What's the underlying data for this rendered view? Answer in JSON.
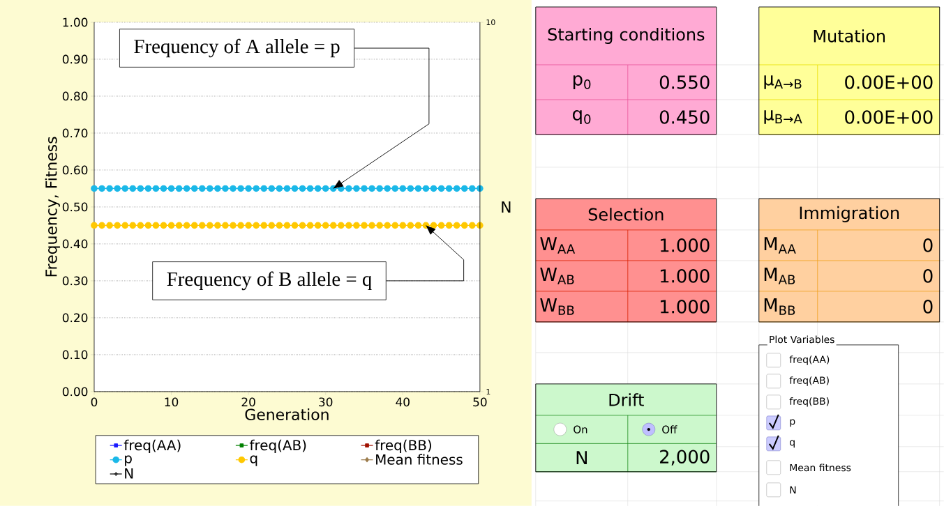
{
  "chart_data": [
    {
      "type": "line",
      "xlabel": "Generation",
      "ylabel": "Frequency, Fitness",
      "y2label": "N",
      "x": [
        0,
        1,
        2,
        3,
        4,
        5,
        6,
        7,
        8,
        9,
        10,
        11,
        12,
        13,
        14,
        15,
        16,
        17,
        18,
        19,
        20,
        21,
        22,
        23,
        24,
        25,
        26,
        27,
        28,
        29,
        30,
        31,
        32,
        33,
        34,
        35,
        36,
        37,
        38,
        39,
        40,
        41,
        42,
        43,
        44,
        45,
        46,
        47,
        48,
        49,
        50
      ],
      "series": [
        {
          "name": "freq(AA)",
          "color": "#1a1aff",
          "marker": "square",
          "values": [
            null,
            null,
            null,
            null,
            null,
            null,
            null,
            null,
            null,
            null,
            null,
            null,
            null,
            null,
            null,
            null,
            null,
            null,
            null,
            null,
            null,
            null,
            null,
            null,
            null,
            null,
            null,
            null,
            null,
            null,
            null,
            null,
            null,
            null,
            null,
            null,
            null,
            null,
            null,
            null,
            null,
            null,
            null,
            null,
            null,
            null,
            null,
            null,
            null,
            null,
            null
          ]
        },
        {
          "name": "freq(AB)",
          "color": "#008000",
          "marker": "square",
          "values": [
            null,
            null,
            null,
            null,
            null,
            null,
            null,
            null,
            null,
            null,
            null,
            null,
            null,
            null,
            null,
            null,
            null,
            null,
            null,
            null,
            null,
            null,
            null,
            null,
            null,
            null,
            null,
            null,
            null,
            null,
            null,
            null,
            null,
            null,
            null,
            null,
            null,
            null,
            null,
            null,
            null,
            null,
            null,
            null,
            null,
            null,
            null,
            null,
            null,
            null,
            null
          ]
        },
        {
          "name": "freq(BB)",
          "color": "#a01000",
          "marker": "square",
          "values": [
            null,
            null,
            null,
            null,
            null,
            null,
            null,
            null,
            null,
            null,
            null,
            null,
            null,
            null,
            null,
            null,
            null,
            null,
            null,
            null,
            null,
            null,
            null,
            null,
            null,
            null,
            null,
            null,
            null,
            null,
            null,
            null,
            null,
            null,
            null,
            null,
            null,
            null,
            null,
            null,
            null,
            null,
            null,
            null,
            null,
            null,
            null,
            null,
            null,
            null,
            null
          ]
        },
        {
          "name": "p",
          "color": "#1ab8e8",
          "marker": "circle",
          "values": [
            0.55,
            0.55,
            0.55,
            0.55,
            0.55,
            0.55,
            0.55,
            0.55,
            0.55,
            0.55,
            0.55,
            0.55,
            0.55,
            0.55,
            0.55,
            0.55,
            0.55,
            0.55,
            0.55,
            0.55,
            0.55,
            0.55,
            0.55,
            0.55,
            0.55,
            0.55,
            0.55,
            0.55,
            0.55,
            0.55,
            0.55,
            0.55,
            0.55,
            0.55,
            0.55,
            0.55,
            0.55,
            0.55,
            0.55,
            0.55,
            0.55,
            0.55,
            0.55,
            0.55,
            0.55,
            0.55,
            0.55,
            0.55,
            0.55,
            0.55,
            0.55
          ]
        },
        {
          "name": "q",
          "color": "#ffc800",
          "marker": "circle",
          "values": [
            0.45,
            0.45,
            0.45,
            0.45,
            0.45,
            0.45,
            0.45,
            0.45,
            0.45,
            0.45,
            0.45,
            0.45,
            0.45,
            0.45,
            0.45,
            0.45,
            0.45,
            0.45,
            0.45,
            0.45,
            0.45,
            0.45,
            0.45,
            0.45,
            0.45,
            0.45,
            0.45,
            0.45,
            0.45,
            0.45,
            0.45,
            0.45,
            0.45,
            0.45,
            0.45,
            0.45,
            0.45,
            0.45,
            0.45,
            0.45,
            0.45,
            0.45,
            0.45,
            0.45,
            0.45,
            0.45,
            0.45,
            0.45,
            0.45,
            0.45,
            0.45
          ]
        },
        {
          "name": "Mean fitness",
          "color": "#9b7b4b",
          "marker": "diamond",
          "values": [
            null,
            null,
            null,
            null,
            null,
            null,
            null,
            null,
            null,
            null,
            null,
            null,
            null,
            null,
            null,
            null,
            null,
            null,
            null,
            null,
            null,
            null,
            null,
            null,
            null,
            null,
            null,
            null,
            null,
            null,
            null,
            null,
            null,
            null,
            null,
            null,
            null,
            null,
            null,
            null,
            null,
            null,
            null,
            null,
            null,
            null,
            null,
            null,
            null,
            null,
            null
          ]
        },
        {
          "name": "N",
          "color": "#000000",
          "marker": "cross",
          "values": [
            null,
            null,
            null,
            null,
            null,
            null,
            null,
            null,
            null,
            null,
            null,
            null,
            null,
            null,
            null,
            null,
            null,
            null,
            null,
            null,
            null,
            null,
            null,
            null,
            null,
            null,
            null,
            null,
            null,
            null,
            null,
            null,
            null,
            null,
            null,
            null,
            null,
            null,
            null,
            null,
            null,
            null,
            null,
            null,
            null,
            null,
            null,
            null,
            null,
            null,
            null
          ]
        }
      ],
      "xlim": [
        0,
        50
      ],
      "xticks": [
        0,
        10,
        20,
        30,
        40,
        50
      ],
      "ylim": [
        0,
        1
      ],
      "yticks": [
        {
          "value": 0,
          "label": "0.00"
        },
        {
          "value": 0.1,
          "label": "0.10"
        },
        {
          "value": 0.2,
          "label": "0.20"
        },
        {
          "value": 0.3,
          "label": "0.30"
        },
        {
          "value": 0.4,
          "label": "0.40"
        },
        {
          "value": 0.5,
          "label": "0.50"
        },
        {
          "value": 0.6,
          "label": "0.60"
        },
        {
          "value": 0.7,
          "label": "0.70"
        },
        {
          "value": 0.8,
          "label": "0.80"
        },
        {
          "value": 0.9,
          "label": "0.90"
        },
        {
          "value": 1,
          "label": "1.00"
        }
      ],
      "y2lim": [
        1,
        10
      ],
      "y2ticks": [
        1,
        10
      ],
      "grid": "y",
      "legend": "bottom",
      "annotations": [
        {
          "text": "Frequency of A allele = p",
          "x": 31,
          "y": 0.55
        },
        {
          "text": "Frequency of B allele = q",
          "x": 43,
          "y": 0.45
        }
      ]
    },
    {
      "type": "other",
      "title": "Starting conditions",
      "color": "#ffaad4",
      "annotations": [
        "p$_{0}$",
        "0.550",
        "q$_{0}$",
        "0.450"
      ]
    },
    {
      "type": "other",
      "title": "Mutation",
      "color": "#ffff99",
      "annotations": [
        "μ$_{A→B}$",
        "0.00E+00",
        "μ$_{B→A}$",
        "0.00E+00"
      ]
    },
    {
      "type": "other",
      "title": "Selection",
      "color": "#ff9090",
      "annotations": [
        "W$_{AA}$",
        "1.000",
        "W$_{AB}$",
        "1.000",
        "W$_{BB}$",
        "1.000"
      ]
    },
    {
      "type": "other",
      "title": "Immigration",
      "color": "#ffd0a0",
      "annotations": [
        "M$_{AA}$",
        "0",
        "M$_{AB}$",
        "0",
        "M$_{BB}$",
        "0"
      ]
    },
    {
      "type": "other",
      "title": "Drift",
      "color": "#ccf8cc",
      "annotations": [
        "On",
        "Off",
        "N",
        "2,000"
      ]
    },
    {
      "type": "other",
      "title": "Plot Variables",
      "annotations": [
        "freq(AA)",
        "freq(AB)",
        "freq(BB)",
        "p",
        "q",
        "Mean fitness",
        "N"
      ]
    }
  ]
}
